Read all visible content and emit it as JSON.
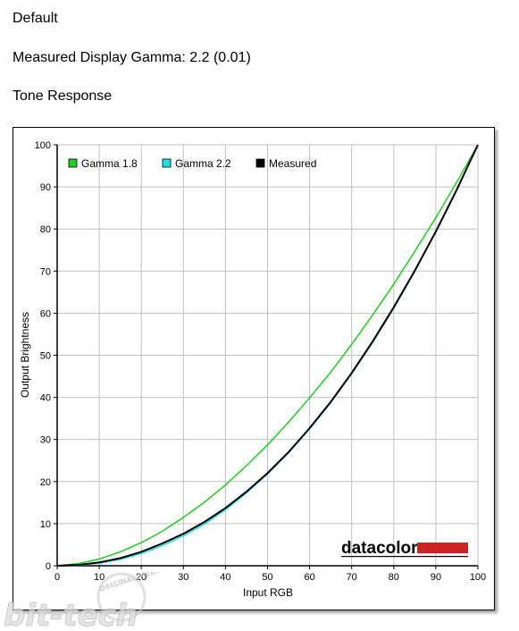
{
  "header": {
    "profile_name": "Default",
    "gamma_label": "Measured Display Gamma: 2.2 (0.01)",
    "section_title": "Tone Response"
  },
  "watermark": {
    "text": "bit-tech",
    "badge_text": "ORIGINAL.MEDIA"
  },
  "chart_data": {
    "type": "line",
    "title": "",
    "xlabel": "Input RGB",
    "ylabel": "Output Brightness",
    "xlim": [
      0,
      100
    ],
    "ylim": [
      0,
      100
    ],
    "xticks": [
      0,
      10,
      20,
      30,
      40,
      50,
      60,
      70,
      80,
      90,
      100
    ],
    "yticks": [
      0,
      10,
      20,
      30,
      40,
      50,
      60,
      70,
      80,
      90,
      100
    ],
    "grid": true,
    "legend_position": "top-left",
    "x": [
      0,
      5,
      10,
      15,
      20,
      25,
      30,
      35,
      40,
      45,
      50,
      55,
      60,
      65,
      70,
      75,
      80,
      85,
      90,
      95,
      100
    ],
    "series": [
      {
        "name": "Gamma 1.8",
        "color": "#22cc22",
        "values": [
          0,
          0.5,
          1.6,
          3.3,
          5.5,
          8.2,
          11.5,
          15.1,
          19.2,
          23.8,
          28.7,
          34.1,
          39.9,
          46.0,
          52.6,
          59.6,
          66.9,
          74.7,
          82.7,
          91.2,
          100
        ]
      },
      {
        "name": "Gamma 2.2",
        "color": "#22dddd",
        "values": [
          0,
          0.1,
          0.6,
          1.5,
          2.9,
          4.8,
          7.1,
          9.9,
          13.3,
          17.3,
          21.8,
          26.8,
          32.5,
          38.7,
          45.6,
          53.1,
          61.2,
          69.9,
          79.3,
          89.3,
          100
        ]
      },
      {
        "name": "Measured",
        "color": "#000000",
        "values": [
          0,
          0.2,
          0.8,
          1.8,
          3.3,
          5.3,
          7.6,
          10.4,
          13.7,
          17.6,
          22.0,
          27.0,
          32.7,
          38.9,
          45.8,
          53.3,
          61.4,
          70.1,
          79.4,
          89.4,
          100
        ]
      }
    ],
    "logo": "datacolor",
    "colors": {
      "logo_bar": "#cc2222",
      "grid": "#c0c0c0"
    }
  }
}
